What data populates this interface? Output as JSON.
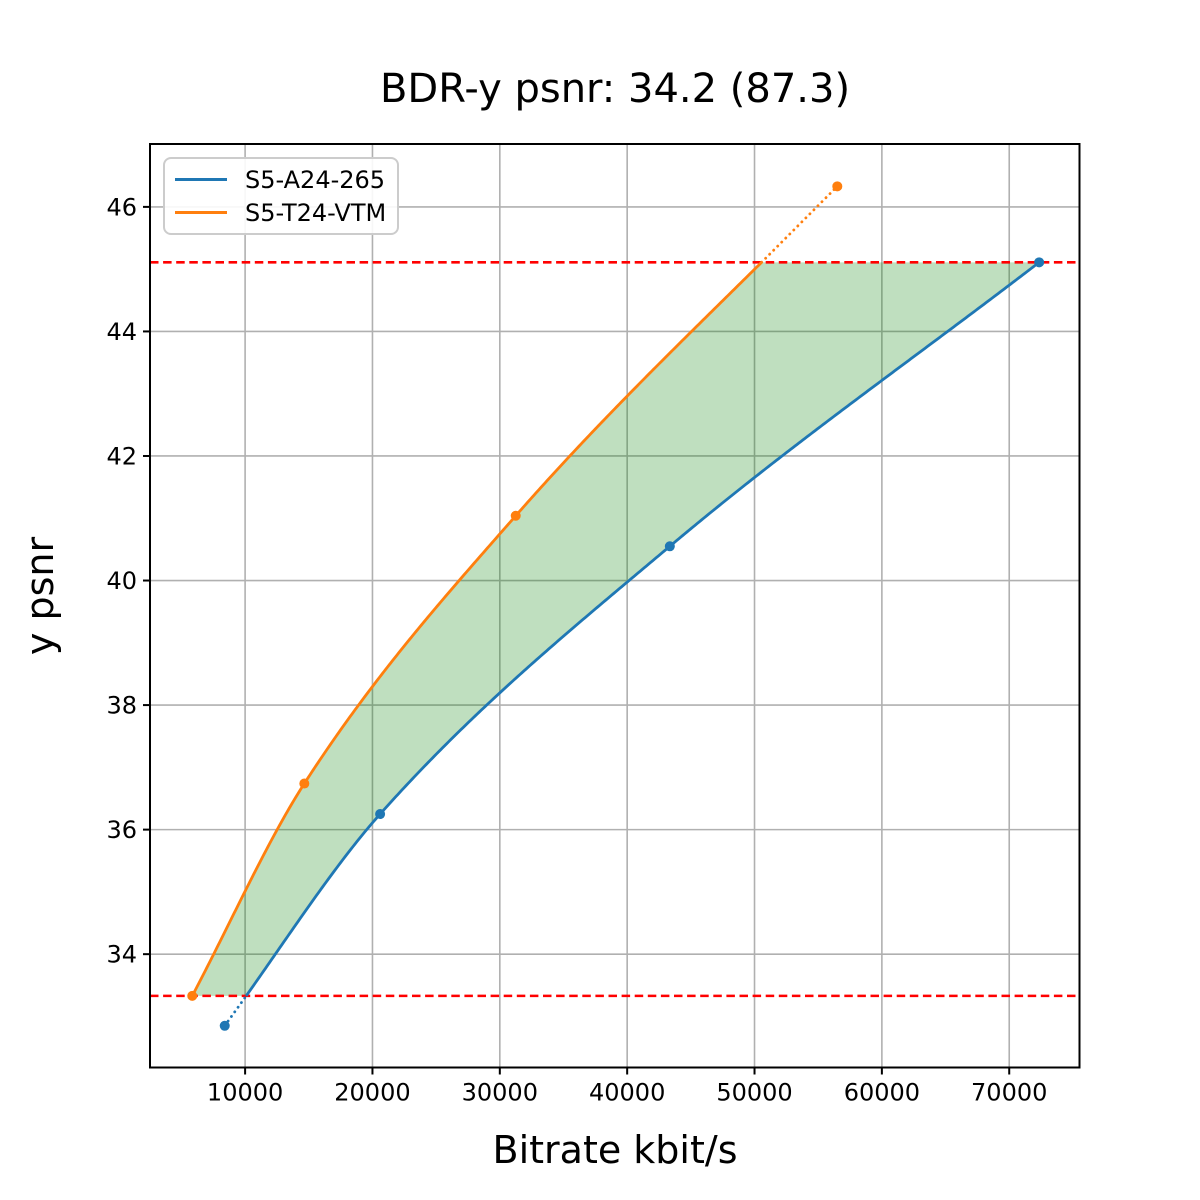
{
  "chart_data": {
    "type": "line",
    "title": "BDR-y psnr: 34.2 (87.3)",
    "xlabel": "Bitrate kbit/s",
    "ylabel": "y psnr",
    "xlim": [
      2532,
      75518
    ],
    "ylim": [
      32.18,
      47.01
    ],
    "x_ticks": [
      10000,
      20000,
      30000,
      40000,
      50000,
      60000,
      70000
    ],
    "y_ticks": [
      34,
      36,
      38,
      40,
      42,
      44,
      46
    ],
    "grid": true,
    "grid_color": "#b0b0b0",
    "axis_color": "#000000",
    "legend_position": "upper-left",
    "series": [
      {
        "name": "S5-A24-265",
        "color": "#1f77b4",
        "x": [
          8400,
          20600,
          43350,
          72350
        ],
        "y": [
          32.85,
          36.25,
          40.55,
          45.11
        ],
        "out_of_range_point": "first"
      },
      {
        "name": "S5-T24-VTM",
        "color": "#ff7f0e",
        "x": [
          5850,
          14650,
          31250,
          56500
        ],
        "y": [
          33.33,
          36.74,
          41.04,
          46.33
        ],
        "out_of_range_point": "last"
      }
    ],
    "bd_bounds": {
      "lower": 33.33,
      "upper": 45.11,
      "line_color": "#ff0000",
      "line_style": "dashed"
    },
    "fill_between": {
      "color": "#008000",
      "opacity": 0.25
    }
  }
}
